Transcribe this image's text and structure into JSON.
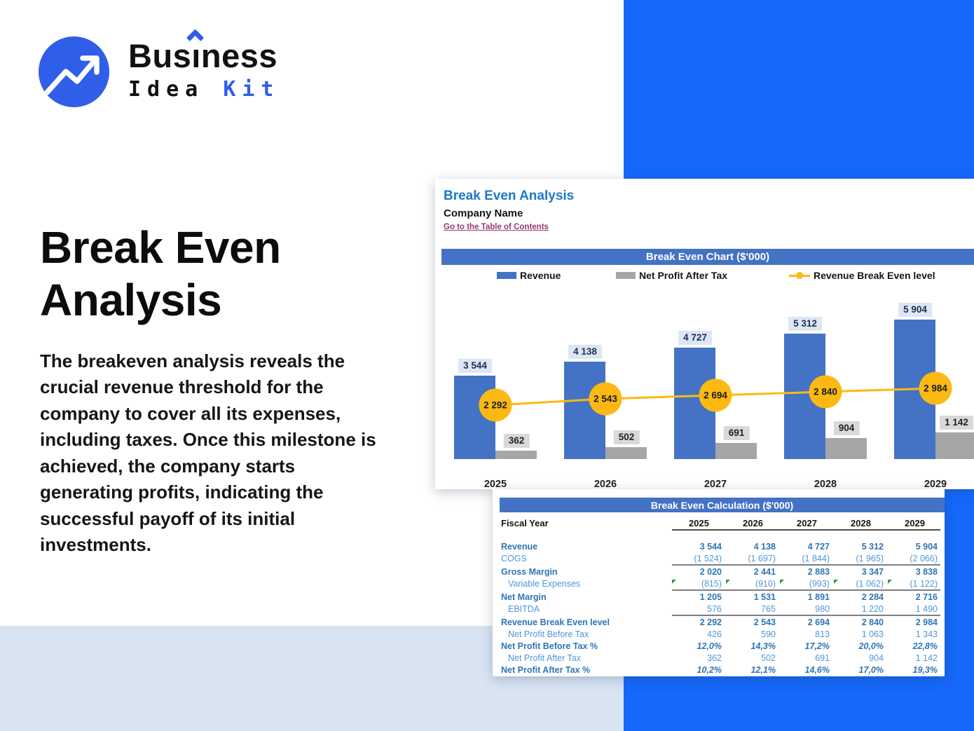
{
  "brand": {
    "name_primary_pre": "Bus",
    "name_primary_i": "ı",
    "name_primary_post": "ness",
    "name_secondary_black": "Idea",
    "name_secondary_accent": "Kit",
    "accent_color": "#2f5fe8"
  },
  "hero": {
    "title_line1": "Break Even",
    "title_line2": "Analysis",
    "description": "The breakeven analysis reveals the crucial revenue threshold for the company to cover all its expenses, including taxes. Once this milestone is achieved, the company starts generating profits, indicating the successful payoff of its initial investments."
  },
  "sheet": {
    "title": "Break Even Analysis",
    "company": "Company Name",
    "toc_link": "Go to the Table of Contents"
  },
  "colors": {
    "revenue_bar": "#4472c4",
    "net_profit_bar": "#a6a6a6",
    "breakeven_line": "#fdb913",
    "banner": "#4472c4",
    "background_accent": "#1568fa",
    "background_band": "#d9e4f3",
    "table_bold_text": "#2e75b6",
    "table_light_text": "#4f97d8",
    "link": "#963a6b"
  },
  "chart_data": [
    {
      "type": "bar",
      "title": "Break Even Chart ($'000)",
      "categories": [
        "2025",
        "2026",
        "2027",
        "2028",
        "2029"
      ],
      "series": [
        {
          "name": "Revenue",
          "plot": "bar",
          "color": "#4472c4",
          "values": [
            3544,
            4138,
            4727,
            5312,
            5904
          ],
          "labels": [
            "3 544",
            "4 138",
            "4 727",
            "5 312",
            "5 904"
          ]
        },
        {
          "name": "Net Profit After Tax",
          "plot": "bar",
          "color": "#a6a6a6",
          "values": [
            362,
            502,
            691,
            904,
            1142
          ],
          "labels": [
            "362",
            "502",
            "691",
            "904",
            "1 142"
          ]
        },
        {
          "name": "Revenue Break Even level",
          "plot": "line",
          "color": "#fdb913",
          "values": [
            2292,
            2543,
            2694,
            2840,
            2984
          ],
          "labels": [
            "2 292",
            "2 543",
            "2 694",
            "2 840",
            "2 984"
          ]
        }
      ],
      "legend_position": "top",
      "value_labels": true,
      "gridlines": false,
      "y_axis_visible": false,
      "ylim": [
        0,
        6500
      ]
    },
    {
      "type": "table",
      "title": "Break Even Calculation ($'000)",
      "header_label": "Fiscal Year",
      "columns": [
        "2025",
        "2026",
        "2027",
        "2028",
        "2029"
      ],
      "rows": [
        {
          "label": "Revenue",
          "style": "bold",
          "indent": false,
          "markers": false,
          "rule_below": false,
          "values": [
            "3 544",
            "4 138",
            "4 727",
            "5 312",
            "5 904"
          ]
        },
        {
          "label": "COGS",
          "style": "light",
          "indent": false,
          "markers": false,
          "rule_below": true,
          "values": [
            "(1 524)",
            "(1 697)",
            "(1 844)",
            "(1 965)",
            "(2 066)"
          ]
        },
        {
          "label": "Gross Margin",
          "style": "bold",
          "indent": false,
          "markers": false,
          "rule_below": false,
          "values": [
            "2 020",
            "2 441",
            "2 883",
            "3 347",
            "3 838"
          ]
        },
        {
          "label": "Variable Expenses",
          "style": "light",
          "indent": true,
          "markers": true,
          "rule_below": true,
          "values": [
            "(815)",
            "(910)",
            "(993)",
            "(1 062)",
            "(1 122)"
          ]
        },
        {
          "label": "Net Margin",
          "style": "bold",
          "indent": false,
          "markers": false,
          "rule_below": false,
          "values": [
            "1 205",
            "1 531",
            "1 891",
            "2 284",
            "2 716"
          ]
        },
        {
          "label": "EBITDA",
          "style": "light",
          "indent": true,
          "markers": false,
          "rule_below": true,
          "values": [
            "576",
            "765",
            "980",
            "1 220",
            "1 490"
          ]
        },
        {
          "label": "Revenue Break Even level",
          "style": "bold",
          "indent": false,
          "markers": false,
          "rule_below": false,
          "values": [
            "2 292",
            "2 543",
            "2 694",
            "2 840",
            "2 984"
          ]
        },
        {
          "label": "Net Profit Before Tax",
          "style": "light",
          "indent": true,
          "markers": false,
          "rule_below": false,
          "values": [
            "426",
            "590",
            "813",
            "1 063",
            "1 343"
          ]
        },
        {
          "label": "Net Profit Before Tax %",
          "style": "bold-italic",
          "indent": false,
          "markers": false,
          "rule_below": false,
          "values": [
            "12,0%",
            "14,3%",
            "17,2%",
            "20,0%",
            "22,8%"
          ]
        },
        {
          "label": "Net Profit After Tax",
          "style": "light",
          "indent": true,
          "markers": false,
          "rule_below": false,
          "values": [
            "362",
            "502",
            "691",
            "904",
            "1 142"
          ]
        },
        {
          "label": "Net Profit After Tax %",
          "style": "bold-italic",
          "indent": false,
          "markers": false,
          "rule_below": false,
          "values": [
            "10,2%",
            "12,1%",
            "14,6%",
            "17,0%",
            "19,3%"
          ]
        }
      ]
    }
  ]
}
